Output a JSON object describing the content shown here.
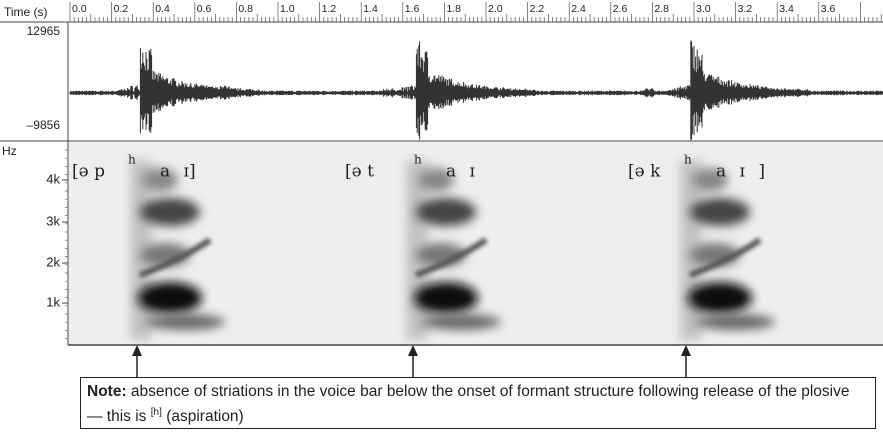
{
  "time_axis": {
    "label": "Time (s)",
    "ticks": [
      "0.0",
      "0.2",
      "0.4",
      "0.6",
      "0.8",
      "1.0",
      "1.2",
      "1.4",
      "1.6",
      "1.8",
      "2.0",
      "2.2",
      "2.4",
      "2.6",
      "2.8",
      "3.0",
      "3.2",
      "3.4",
      "3.6"
    ]
  },
  "waveform": {
    "max_label": "12965",
    "min_label": "–9856"
  },
  "spectrogram": {
    "unit": "Hz",
    "ticks": [
      "4k",
      "3k",
      "2k",
      "1k"
    ],
    "transcriptions": [
      {
        "onset": "[ə p",
        "sup": "h",
        "rest": "a ɪ]"
      },
      {
        "onset": "[ə t",
        "sup": "h",
        "rest": "a ɪ"
      },
      {
        "onset": "[ə k",
        "sup": "h",
        "rest": "a ɪ ]"
      }
    ]
  },
  "note": {
    "label": "Note:",
    "text": "absence of striations in the voice bar below the onset of formant structure following release of the plosive — this is",
    "sup": "[h]",
    "tail": "(aspiration)"
  }
}
